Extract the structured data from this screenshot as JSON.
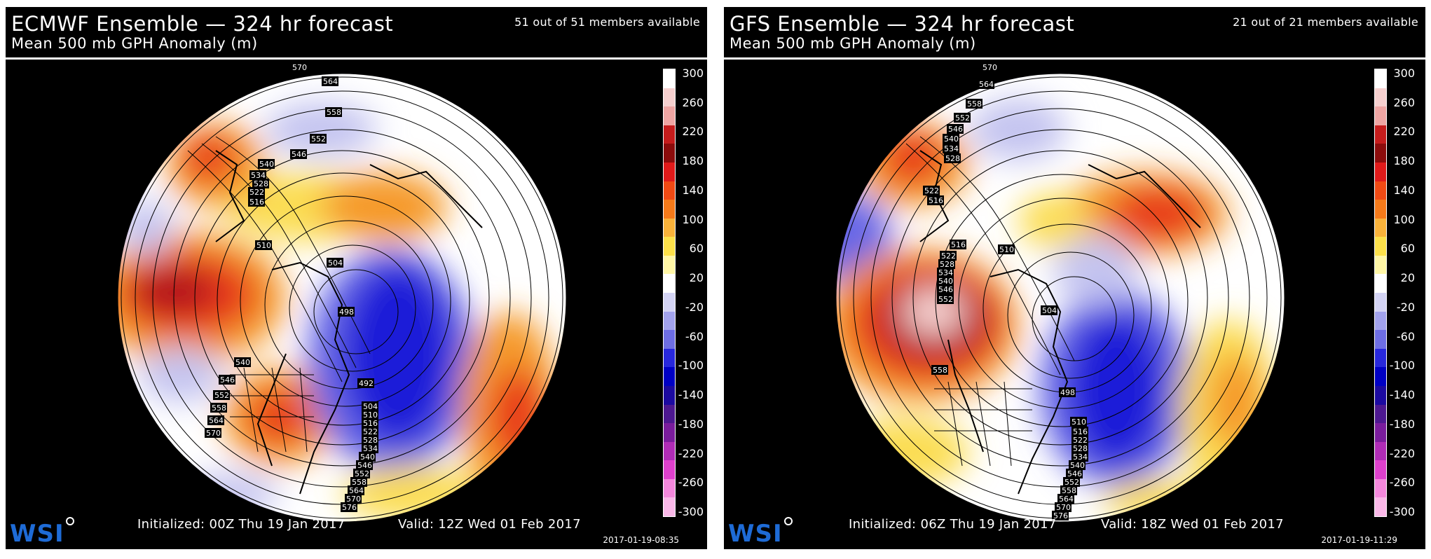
{
  "panels": [
    {
      "title": "ECMWF Ensemble — 324 hr forecast",
      "subtitle": "Mean 500 mb GPH Anomaly (m)",
      "members": "51 out of 51 members available",
      "initialized": "Initialized: 00Z Thu 19 Jan 2017",
      "valid": "Valid: 12Z Wed 01 Feb 2017",
      "timestamp": "2017-01-19-08:35",
      "logo": "WSI",
      "contour_labels": [
        "570",
        "564",
        "558",
        "552",
        "546",
        "540",
        "534",
        "528",
        "522",
        "516",
        "510",
        "504",
        "498",
        "492",
        "504",
        "510",
        "516",
        "522",
        "528",
        "534",
        "540",
        "546",
        "552",
        "558",
        "564",
        "570",
        "576",
        "540",
        "546",
        "552",
        "558",
        "564",
        "570"
      ]
    },
    {
      "title": "GFS Ensemble — 324 hr forecast",
      "subtitle": "Mean 500 mb GPH Anomaly (m)",
      "members": "21 out of 21 members available",
      "initialized": "Initialized: 06Z Thu 19 Jan 2017",
      "valid": "Valid: 18Z Wed 01 Feb 2017",
      "timestamp": "2017-01-19-11:29",
      "logo": "WSI",
      "contour_labels": [
        "570",
        "564",
        "558",
        "552",
        "546",
        "540",
        "534",
        "528",
        "522",
        "516",
        "516",
        "510",
        "522",
        "528",
        "534",
        "540",
        "546",
        "552",
        "504",
        "498",
        "558",
        "510",
        "516",
        "522",
        "528",
        "534",
        "540",
        "546",
        "552",
        "558",
        "564",
        "570",
        "576"
      ]
    }
  ],
  "colorbar": {
    "labels": [
      "300",
      "260",
      "220",
      "180",
      "140",
      "100",
      "60",
      "20",
      "-20",
      "-60",
      "-100",
      "-140",
      "-180",
      "-220",
      "-260",
      "-300"
    ],
    "colors": [
      "#ffffff",
      "#f6d0cf",
      "#eea5a3",
      "#c51c1c",
      "#8b0c0c",
      "#e01a1a",
      "#f04a14",
      "#f57a1a",
      "#f9b23a",
      "#fce04a",
      "#fff6a6",
      "#ffffff",
      "#d4d4f4",
      "#a2a2ec",
      "#6e6ee4",
      "#2828dc",
      "#0000c4",
      "#1c0aa0",
      "#4d1890",
      "#7a1c9c",
      "#b02cb6",
      "#de40cc",
      "#f488dc",
      "#fab8e8"
    ]
  },
  "anomaly_colors": {
    "strong_positive": "#b3141a",
    "positive": "#e83a1e",
    "mild_positive": "#f59a2a",
    "weak_positive": "#fbdd52",
    "neutral": "#ffffff",
    "weak_negative": "#c4c4f0",
    "negative": "#6868e6",
    "strong_negative": "#1e1ed8"
  }
}
